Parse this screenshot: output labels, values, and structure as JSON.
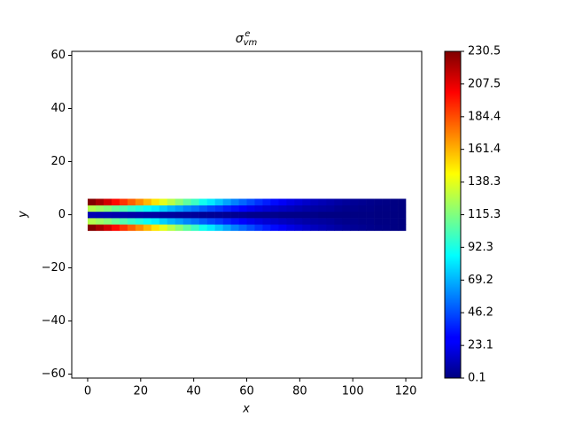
{
  "chart_data": {
    "type": "heatmap",
    "title": {
      "symbol": "σ",
      "sub": "vm",
      "sup": "e"
    },
    "xlabel": "x",
    "ylabel": "y",
    "colormap": "jet",
    "x_edges": [
      0,
      3,
      6,
      9,
      12,
      15,
      18,
      21,
      24,
      27,
      30,
      33,
      36,
      39,
      42,
      45,
      48,
      51,
      54,
      57,
      60,
      63,
      66,
      69,
      72,
      75,
      78,
      81,
      84,
      87,
      90,
      93,
      96,
      99,
      102,
      105,
      108,
      111,
      114,
      117,
      120
    ],
    "y_edges": [
      -6,
      -3.6,
      -1.2,
      1.2,
      3.6,
      6
    ],
    "z": [
      [
        230,
        222,
        212,
        200,
        190,
        180,
        170,
        160,
        150,
        138,
        128,
        118,
        108,
        100,
        90,
        82,
        74,
        66,
        58,
        52,
        46,
        40,
        35,
        31,
        27,
        23,
        20,
        17,
        14,
        12,
        10,
        8,
        6,
        5,
        4,
        3,
        2,
        1.5,
        1,
        0.5
      ],
      [
        127,
        122,
        117,
        110,
        105,
        99,
        94,
        88,
        83,
        76,
        70,
        65,
        59,
        55,
        50,
        45,
        41,
        36,
        32,
        29,
        25,
        22,
        19,
        17,
        15,
        13,
        11,
        9,
        8,
        7,
        6,
        4,
        3,
        3,
        2,
        2,
        1,
        1,
        1,
        0.3
      ],
      [
        12,
        11,
        11,
        10,
        10,
        9,
        9,
        8,
        8,
        7,
        7,
        6,
        6,
        6,
        5,
        5,
        5,
        4,
        4,
        4,
        3,
        3,
        3,
        3,
        2,
        2,
        2,
        2,
        2,
        1,
        1,
        1,
        1,
        1,
        1,
        1,
        0.5,
        0.5,
        0.5,
        0.1
      ],
      [
        127,
        122,
        117,
        110,
        105,
        99,
        94,
        88,
        83,
        76,
        70,
        65,
        59,
        55,
        50,
        45,
        41,
        36,
        32,
        29,
        25,
        22,
        19,
        17,
        15,
        13,
        11,
        9,
        8,
        7,
        6,
        4,
        3,
        3,
        2,
        2,
        1,
        1,
        1,
        0.3
      ],
      [
        230,
        222,
        212,
        200,
        190,
        180,
        170,
        160,
        150,
        138,
        128,
        118,
        108,
        100,
        90,
        82,
        74,
        66,
        58,
        52,
        46,
        40,
        35,
        31,
        27,
        23,
        20,
        17,
        14,
        12,
        10,
        8,
        6,
        5,
        4,
        3,
        2,
        1.5,
        1,
        0.5
      ]
    ],
    "xlim": [
      -6,
      126
    ],
    "ylim": [
      -61.5,
      61.5
    ],
    "xticks": [
      0,
      20,
      40,
      60,
      80,
      100,
      120
    ],
    "yticks": [
      {
        "value": -60,
        "label": "−60"
      },
      {
        "value": -40,
        "label": "−40"
      },
      {
        "value": -20,
        "label": "−20"
      },
      0,
      20,
      40,
      60
    ],
    "clim": [
      0.1,
      230.5
    ],
    "cticks": [
      0.1,
      23.1,
      46.2,
      69.2,
      92.3,
      115.3,
      138.3,
      161.4,
      184.4,
      207.5,
      230.5
    ]
  }
}
